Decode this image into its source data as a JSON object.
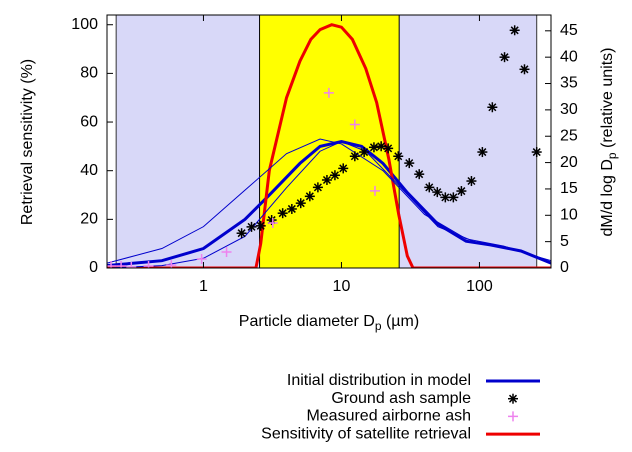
{
  "chart_data": {
    "type": "line",
    "xlabel": {
      "text": "Particle diameter D",
      "sub": "p",
      "tail": " (µm)"
    },
    "ylabel": "Retrieval sensitivity (%)",
    "y2label": {
      "text": "dM/d log D",
      "sub": "p",
      "tail": " (relative units)"
    },
    "xscale": "log",
    "xlim": [
      0.2,
      330
    ],
    "xticks": [
      1,
      10,
      100
    ],
    "ylim": [
      0,
      104
    ],
    "yticks": [
      0,
      20,
      40,
      60,
      80,
      100
    ],
    "y2lim": [
      0,
      48
    ],
    "y2ticks": [
      0,
      5,
      10,
      15,
      20,
      25,
      30,
      35,
      40,
      45
    ],
    "bands": [
      {
        "x": [
          0.233,
          260
        ],
        "color": "#d8d8f8"
      },
      {
        "x": [
          2.55,
          26.2
        ],
        "color": "#ffff00"
      }
    ],
    "legend": "bottom-right",
    "series": [
      {
        "name": "Initial distribution in model",
        "color": "#0000cc",
        "style": "line",
        "width": 3,
        "x": [
          0.2,
          0.5,
          1,
          2,
          3,
          5,
          7,
          10,
          14,
          20,
          30,
          50,
          80,
          120,
          200,
          330
        ],
        "values": [
          1,
          3,
          8,
          20,
          30,
          43,
          50,
          52,
          50,
          43,
          31,
          18,
          11,
          9.5,
          7,
          2
        ]
      },
      {
        "name": "Ground ash sample",
        "color": "#000000",
        "style": "asterisk",
        "axis": "y2",
        "x": [
          1.89,
          2.23,
          2.6,
          3.12,
          3.75,
          4.37,
          5.07,
          5.9,
          6.75,
          7.85,
          8.97,
          10.3,
          12.5,
          14.6,
          17.2,
          19.4,
          21.8,
          25.8,
          31,
          36.6,
          43.3,
          49.5,
          56.6,
          64.7,
          74,
          87.5,
          105,
          124,
          152,
          180,
          212,
          260
        ],
        "values": [
          6.6,
          7.8,
          8,
          9.1,
          10.4,
          11.2,
          12.3,
          13.6,
          15.3,
          16.7,
          17.6,
          18.9,
          21.2,
          22,
          22.9,
          23.1,
          22.7,
          21.2,
          19.9,
          17.8,
          15.3,
          14.4,
          13.4,
          13.4,
          14.6,
          16.5,
          22,
          30.5,
          40,
          45.1,
          37.7,
          22
        ]
      },
      {
        "name": "Measured airborne ash",
        "color": "#ee82ee",
        "style": "plus",
        "x": [
          0.214,
          0.253,
          0.3,
          0.4,
          0.585,
          0.97,
          1.47,
          3.18,
          8.11,
          12.5,
          17.5
        ],
        "values": [
          0.8,
          0.8,
          0.4,
          0.8,
          1.2,
          3.7,
          6.6,
          18.5,
          72,
          59,
          31.7
        ]
      },
      {
        "name": "Sensitivity of satellite retrieval",
        "color": "#ee0000",
        "style": "line",
        "width": 3,
        "x": [
          0.2,
          2.4,
          2.6,
          3,
          4,
          5,
          6,
          7,
          8.5,
          10,
          12,
          15,
          18,
          22,
          26,
          30,
          33,
          330
        ],
        "values": [
          0,
          0,
          10,
          40,
          70,
          85,
          94,
          98,
          100,
          99,
          94,
          82,
          68,
          45,
          22,
          5,
          0,
          0
        ]
      },
      {
        "color": "#0000cc",
        "style": "line",
        "width": 1,
        "x": [
          0.2,
          0.5,
          1,
          2,
          4,
          7,
          10,
          20,
          40,
          80,
          150,
          250,
          330
        ],
        "values": [
          2,
          8,
          17,
          32,
          47,
          53,
          51,
          40,
          22,
          12,
          9,
          5,
          3
        ]
      },
      {
        "color": "#0000cc",
        "style": "line",
        "width": 1,
        "x": [
          0.2,
          0.5,
          1,
          2,
          4,
          7,
          10,
          15,
          25,
          50,
          100,
          200,
          330
        ],
        "values": [
          0,
          1,
          4,
          13,
          33,
          48,
          52,
          48,
          35,
          17,
          10,
          7,
          2
        ]
      }
    ]
  }
}
